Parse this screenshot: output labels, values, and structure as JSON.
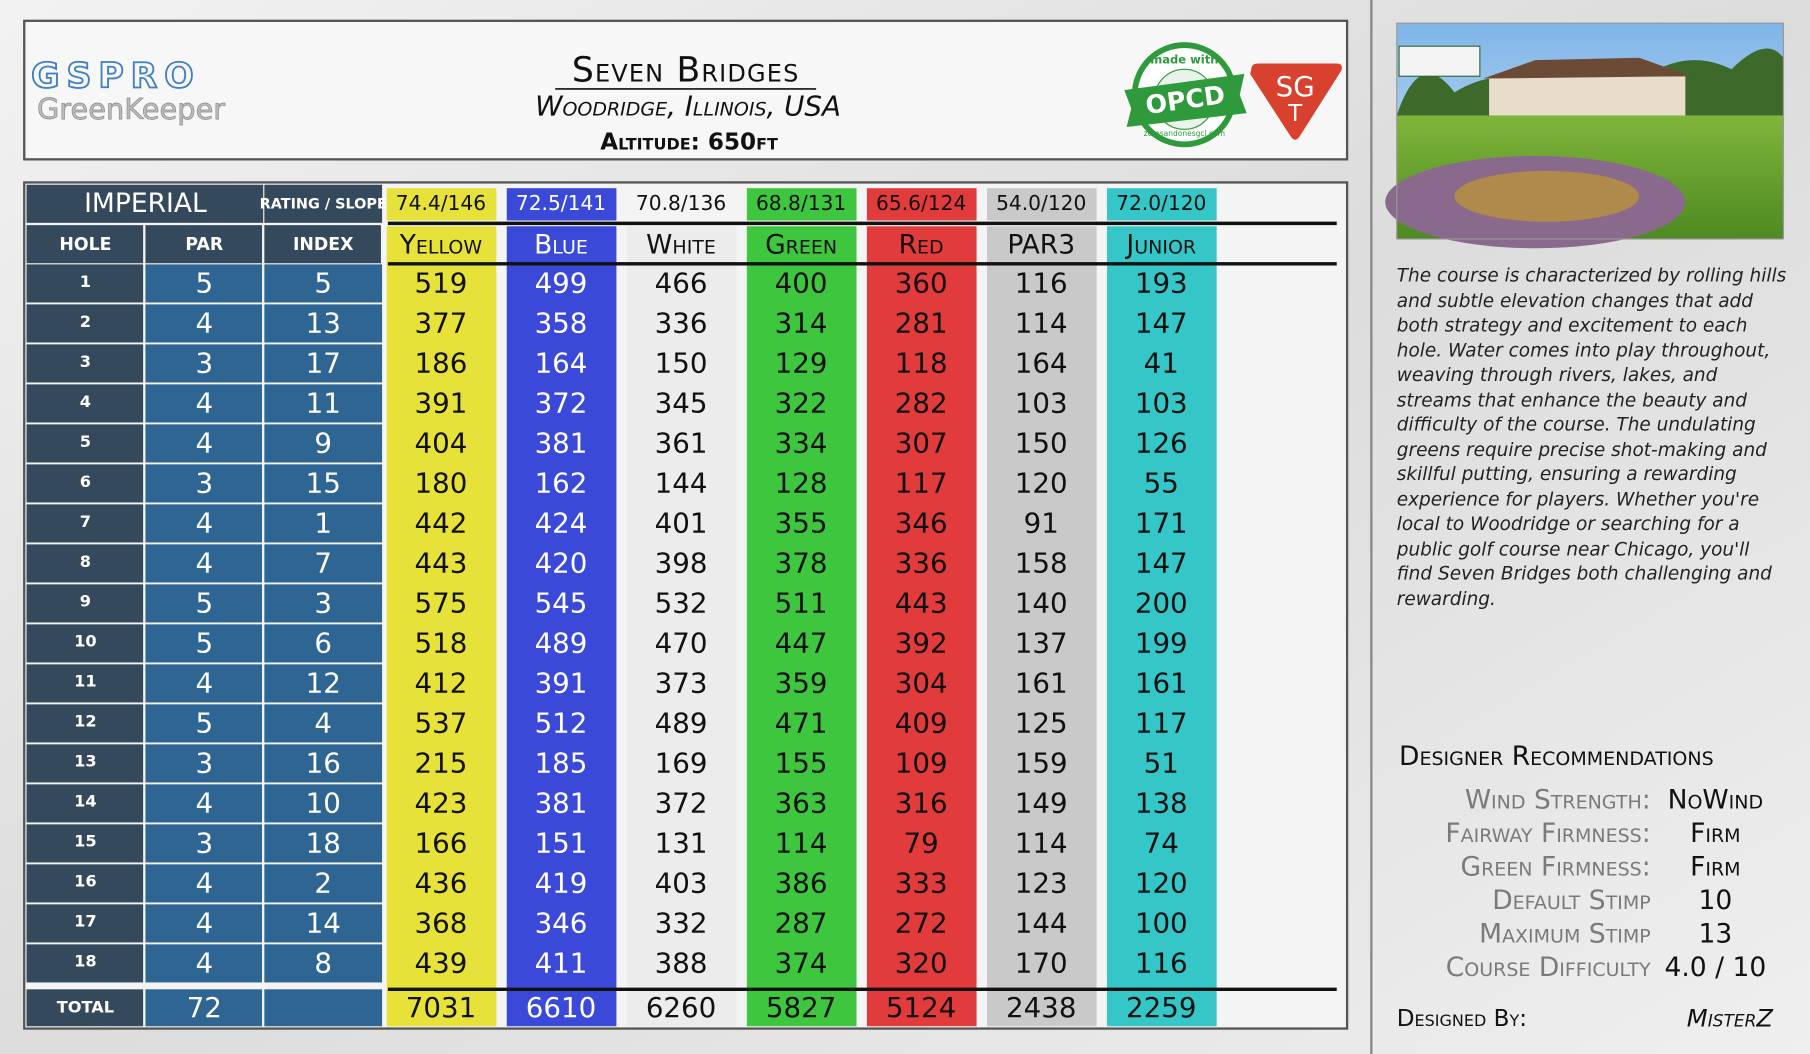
{
  "header": {
    "logo": "GSPRO",
    "logo_subtitle": "GreenKeeper",
    "title": "Seven Bridges",
    "location": "Woodridge, Illinois, USA",
    "altitude": "Altitude: 650ft",
    "badge_top": "made with",
    "badge_main": "OPCD",
    "badge_bottom": "zerosandonesgcl.com",
    "shield_top": "SG",
    "shield_bottom": "T"
  },
  "table": {
    "units": "IMPERIAL",
    "rating_header": "RATING / SLOPE",
    "hole_header": "HOLE",
    "par_header": "PAR",
    "index_header": "INDEX",
    "total_label": "TOTAL",
    "holes": [
      1,
      2,
      3,
      4,
      5,
      6,
      7,
      8,
      9,
      10,
      11,
      12,
      13,
      14,
      15,
      16,
      17,
      18
    ],
    "par": [
      5,
      4,
      3,
      4,
      4,
      3,
      4,
      4,
      5,
      5,
      4,
      5,
      3,
      4,
      3,
      4,
      4,
      4
    ],
    "index": [
      5,
      13,
      17,
      11,
      9,
      15,
      1,
      7,
      3,
      6,
      12,
      4,
      16,
      10,
      18,
      2,
      14,
      8
    ],
    "par_total": 72,
    "tees": [
      {
        "name": "Yellow",
        "rating": "74.4/146",
        "color": "#e6e23a",
        "text_color": "#111",
        "yards": [
          519,
          377,
          186,
          391,
          404,
          180,
          442,
          443,
          575,
          518,
          412,
          537,
          215,
          423,
          166,
          436,
          368,
          439
        ],
        "total": 7031
      },
      {
        "name": "Blue",
        "rating": "72.5/141",
        "color": "#3a49d8",
        "text_color": "#ffffff",
        "yards": [
          499,
          358,
          164,
          372,
          381,
          162,
          424,
          420,
          545,
          489,
          391,
          512,
          185,
          381,
          151,
          419,
          346,
          411
        ],
        "total": 6610
      },
      {
        "name": "White",
        "rating": "70.8/136",
        "color": "#ececec",
        "text_color": "#111",
        "yards": [
          466,
          336,
          150,
          345,
          361,
          144,
          401,
          398,
          532,
          470,
          373,
          489,
          169,
          372,
          131,
          403,
          332,
          388
        ],
        "total": 6260
      },
      {
        "name": "Green",
        "rating": "68.8/131",
        "color": "#3fc63f",
        "text_color": "#111",
        "yards": [
          400,
          314,
          129,
          322,
          334,
          128,
          355,
          378,
          511,
          447,
          359,
          471,
          155,
          363,
          114,
          386,
          287,
          374
        ],
        "total": 5827
      },
      {
        "name": "Red",
        "rating": "65.6/124",
        "color": "#e23b3b",
        "text_color": "#111",
        "yards": [
          360,
          281,
          118,
          282,
          307,
          117,
          346,
          336,
          443,
          392,
          304,
          409,
          109,
          316,
          79,
          333,
          272,
          320
        ],
        "total": 5124
      },
      {
        "name": "PAR3",
        "rating": "54.0/120",
        "color": "#c9c9c9",
        "text_color": "#111",
        "yards": [
          116,
          114,
          164,
          103,
          150,
          120,
          91,
          158,
          140,
          137,
          161,
          125,
          159,
          149,
          114,
          123,
          144,
          170
        ],
        "total": 2438
      },
      {
        "name": "Junior",
        "rating": "72.0/120",
        "color": "#35c7c7",
        "text_color": "#111",
        "yards": [
          193,
          147,
          41,
          103,
          126,
          55,
          171,
          147,
          200,
          199,
          161,
          117,
          51,
          138,
          74,
          120,
          100,
          116
        ],
        "total": 2259
      }
    ]
  },
  "description": "The course is characterized by rolling hills and subtle elevation changes that add both strategy and excitement to each hole. Water comes into play throughout, weaving through rivers, lakes, and streams that enhance the beauty and difficulty of the course. The undulating greens require precise shot-making and skillful putting, ensuring a rewarding experience for players. Whether you're local to Woodridge or searching for a public golf course near Chicago, you'll find Seven Bridges both challenging and rewarding.",
  "recommendations": {
    "title": "Designer Recommendations",
    "items": [
      {
        "label": "Wind Strength:",
        "value": "NoWind"
      },
      {
        "label": "Fairway Firmness:",
        "value": "Firm"
      },
      {
        "label": "Green Firmness:",
        "value": "Firm"
      },
      {
        "label": "Default Stimp",
        "value": "10"
      },
      {
        "label": "Maximum Stimp",
        "value": "13"
      },
      {
        "label": "Course Difficulty",
        "value": "4.0 / 10"
      }
    ]
  },
  "designed_by_label": "Designed By:",
  "designer": "MisterZ"
}
